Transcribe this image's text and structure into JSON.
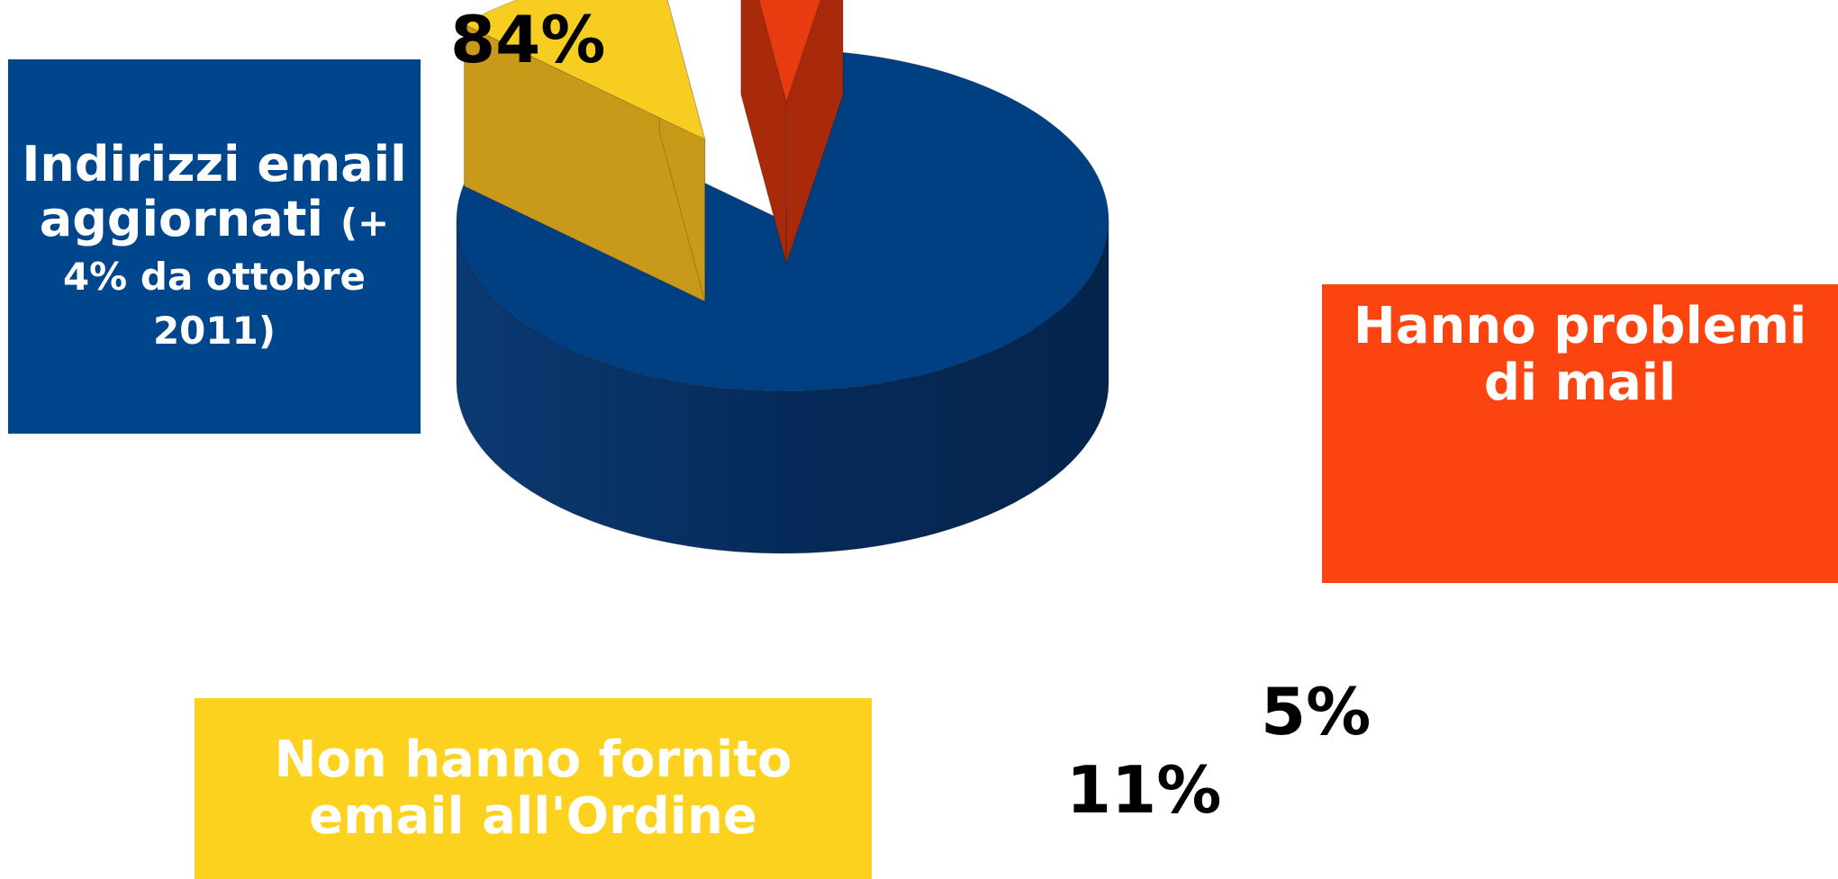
{
  "chart_data": {
    "type": "pie",
    "style": "3d-exploded",
    "categories": [
      "Indirizzi email aggiornati (+ 4% da ottobre 2011)",
      "Non hanno fornito email all'Ordine",
      "Hanno problemi di mail"
    ],
    "values": [
      84,
      11,
      5
    ],
    "value_labels": [
      "84%",
      "11%",
      "5%"
    ],
    "colors": [
      "#003f82",
      "#f8cd22",
      "#e83c10"
    ],
    "legend": "none"
  },
  "labels": {
    "blue_main": "Indirizzi email aggiornati",
    "blue_sub_a": "(+",
    "blue_sub_b": "4% da ottobre 2011)",
    "orange": "Hanno problemi di mail",
    "yellow": "Non hanno fornito email all'Ordine"
  },
  "colors": {
    "blue_box": "#00468c",
    "orange_box": "#fc4410",
    "yellow_box": "#fcd21f"
  }
}
